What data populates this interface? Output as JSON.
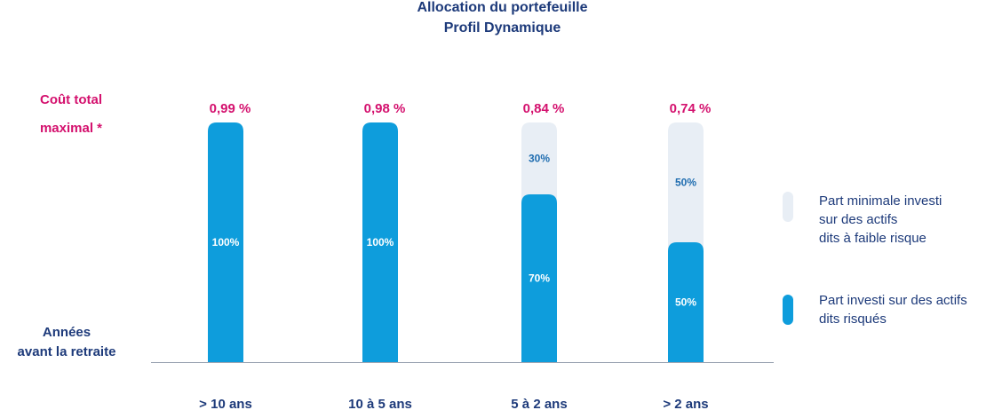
{
  "chart_data": {
    "type": "bar",
    "title": "Allocation du portefeuille",
    "subtitle": "Profil Dynamique",
    "categories": [
      "> 10 ans",
      "10 à 5 ans",
      "5 à 2 ans",
      "> 2 ans"
    ],
    "cost_label_line1": "Coût total",
    "cost_label_line2": "maximal *",
    "costs": [
      "0,99 %",
      "0,98 %",
      "0,84 %",
      "0,74 %"
    ],
    "x_label_line1": "Années",
    "x_label_line2": "avant la retraite",
    "ylim": [
      0,
      100
    ],
    "series": [
      {
        "name": "Part investi sur des actifs dits risqués",
        "values": [
          100,
          100,
          70,
          50
        ],
        "labels": [
          "100%",
          "100%",
          "70%",
          "50%"
        ],
        "color": "#0e9ddc"
      },
      {
        "name": "Part minimale investi sur des actifs dits à faible risque",
        "values": [
          0,
          0,
          30,
          50
        ],
        "labels": [
          "",
          "",
          "30%",
          "50%"
        ],
        "color": "#e8eef5"
      }
    ],
    "legend": [
      {
        "line1": "Part minimale investi",
        "line2": "sur des actifs",
        "line3": "dits à faible risque",
        "color": "#e8eef5"
      },
      {
        "line1": "Part investi sur des actifs",
        "line2": "dits risqués",
        "color": "#0e9ddc"
      }
    ],
    "legend_position": "right"
  }
}
